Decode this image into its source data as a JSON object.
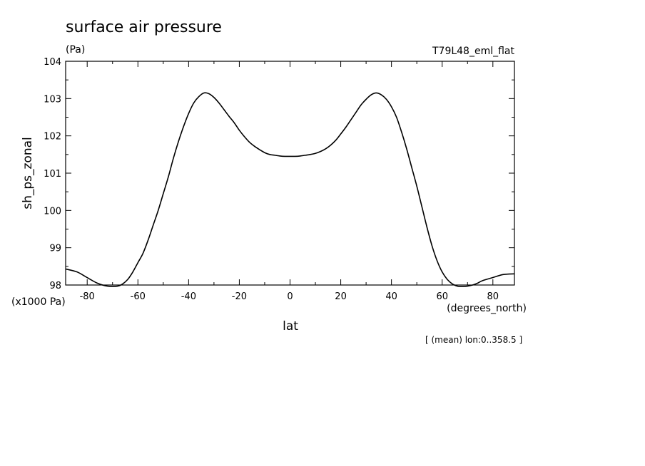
{
  "chart_data": {
    "type": "line",
    "title": "surface air pressure",
    "units": "(Pa)",
    "run_label": "T79L48_eml_flat",
    "xlabel": "lat",
    "ylabel": "sh_ps_zonal",
    "x_unit": "(degrees_north)",
    "y_scale_note": "(x1000 Pa)",
    "footer_note": "[ (mean) lon:0..358.5 ]",
    "xlim": [
      -88.5,
      88.5
    ],
    "ylim": [
      98,
      104
    ],
    "x_ticks": [
      -80,
      -60,
      -40,
      -20,
      0,
      20,
      40,
      60,
      80
    ],
    "x_tick_labels": [
      "-80",
      "-60",
      "-40",
      "-20",
      "0",
      "20",
      "40",
      "60",
      "80"
    ],
    "y_ticks": [
      98,
      99,
      100,
      101,
      102,
      103,
      104
    ],
    "y_tick_labels": [
      "98",
      "99",
      "100",
      "101",
      "102",
      "103",
      "104"
    ],
    "series": [
      {
        "x": [
          -88.5,
          -84,
          -80,
          -76,
          -72,
          -68,
          -66,
          -64,
          -62,
          -60,
          -58,
          -56,
          -54,
          -52,
          -50,
          -48,
          -46,
          -44,
          -42,
          -40,
          -38,
          -36,
          -34,
          -32,
          -30,
          -28,
          -26,
          -24,
          -22,
          -20,
          -18,
          -16,
          -14,
          -12,
          -10,
          -8,
          -6,
          -4,
          -2,
          0,
          2,
          4,
          6,
          8,
          10,
          12,
          14,
          16,
          18,
          20,
          22,
          24,
          26,
          28,
          30,
          32,
          34,
          36,
          38,
          40,
          42,
          44,
          46,
          48,
          50,
          52,
          54,
          56,
          58,
          60,
          62,
          64,
          66,
          68,
          70,
          72,
          74,
          76,
          80,
          84,
          88.5
        ],
        "y": [
          98.43,
          98.35,
          98.2,
          98.05,
          97.97,
          97.97,
          98.03,
          98.15,
          98.35,
          98.6,
          98.85,
          99.2,
          99.6,
          100.0,
          100.45,
          100.9,
          101.4,
          101.85,
          102.25,
          102.6,
          102.88,
          103.05,
          103.15,
          103.13,
          103.03,
          102.88,
          102.7,
          102.52,
          102.35,
          102.15,
          101.98,
          101.83,
          101.72,
          101.63,
          101.55,
          101.5,
          101.48,
          101.46,
          101.45,
          101.45,
          101.45,
          101.46,
          101.48,
          101.5,
          101.53,
          101.58,
          101.65,
          101.75,
          101.88,
          102.05,
          102.23,
          102.43,
          102.63,
          102.83,
          102.98,
          103.1,
          103.15,
          103.1,
          102.98,
          102.78,
          102.5,
          102.1,
          101.65,
          101.15,
          100.65,
          100.1,
          99.55,
          99.05,
          98.65,
          98.35,
          98.15,
          98.03,
          97.97,
          97.96,
          97.97,
          98.0,
          98.05,
          98.12,
          98.2,
          98.28,
          98.3
        ]
      }
    ]
  },
  "colors": {
    "line": "#000000",
    "axis": "#000000",
    "background": "#ffffff"
  }
}
